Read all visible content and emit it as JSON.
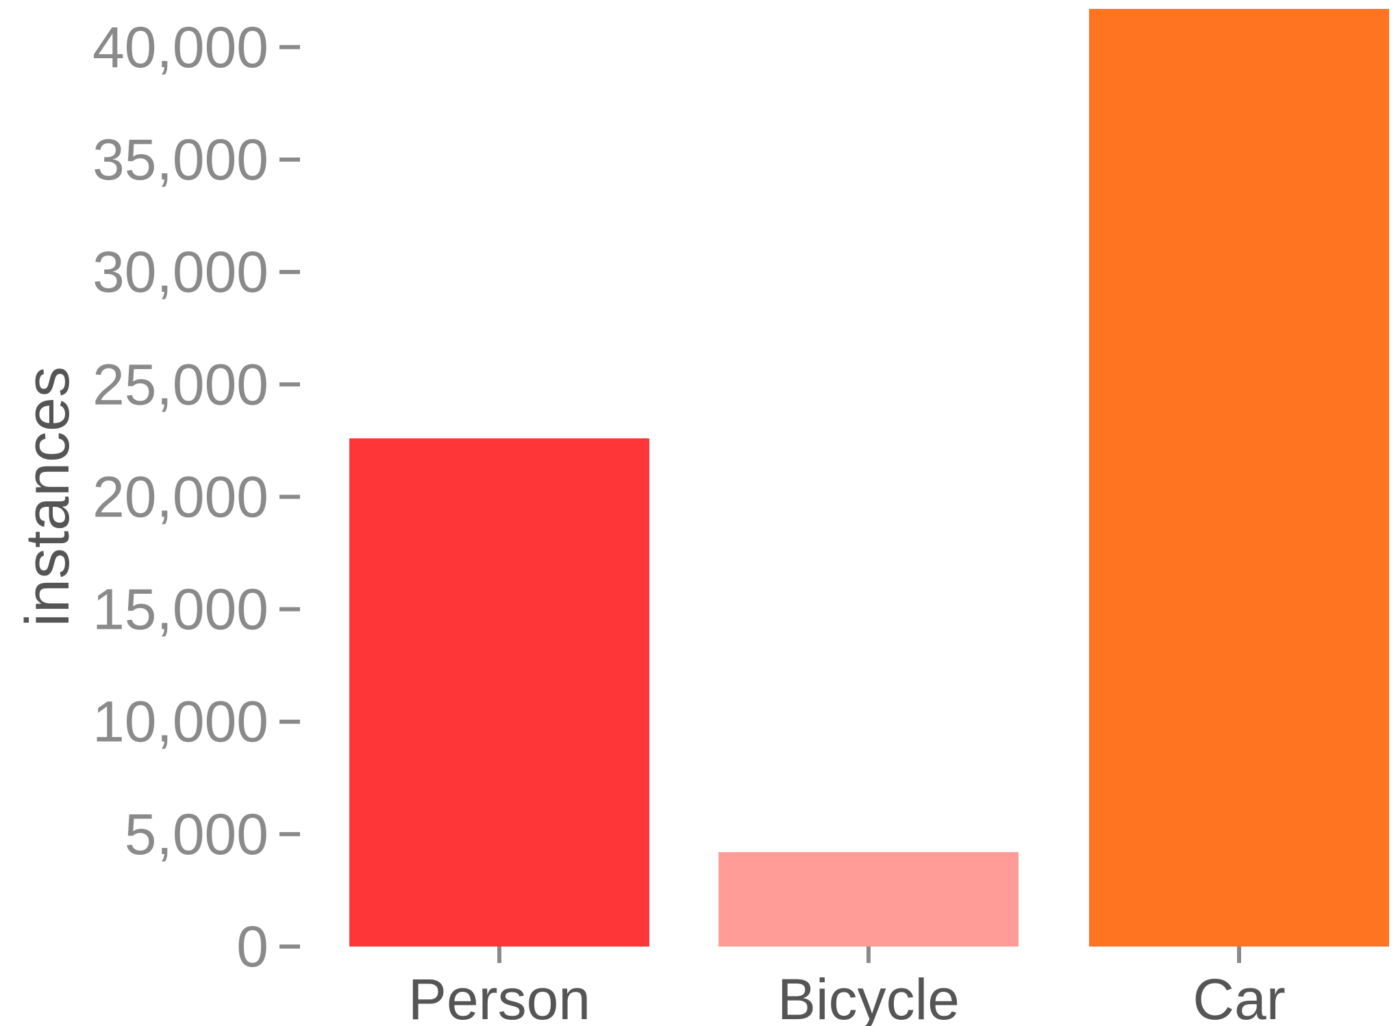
{
  "chart_data": {
    "type": "bar",
    "title": "",
    "xlabel": "",
    "ylabel": "instances",
    "categories": [
      "Person",
      "Bicycle",
      "Car"
    ],
    "values": [
      22600,
      4200,
      41700
    ],
    "colors": [
      "#ff3638",
      "#ff9c97",
      "#ff7420"
    ],
    "ylim": [
      0,
      42000
    ],
    "yticks": [
      0,
      5000,
      10000,
      15000,
      20000,
      25000,
      30000,
      35000,
      40000
    ],
    "ytick_labels": [
      "0",
      "5,000",
      "10,000",
      "15,000",
      "20,000",
      "25,000",
      "30,000",
      "35,000",
      "40,000"
    ],
    "grid": false,
    "legend": "none"
  }
}
